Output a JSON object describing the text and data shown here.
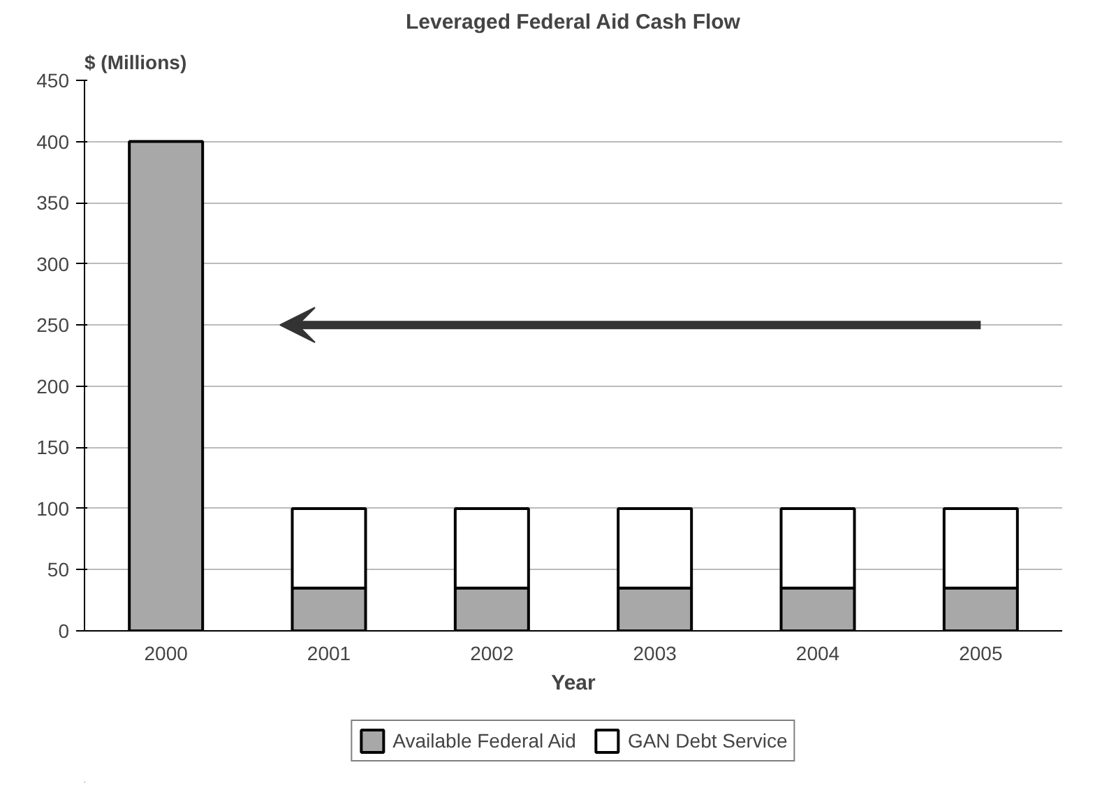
{
  "chart_data": {
    "type": "bar",
    "title": "Leveraged Federal Aid Cash Flow",
    "xlabel": "Year",
    "ylabel": "$ (Millions)",
    "categories": [
      "2000",
      "2001",
      "2002",
      "2003",
      "2004",
      "2005"
    ],
    "stacked": true,
    "series": [
      {
        "name": "Available Federal Aid",
        "color": "#a8a8a8",
        "values": [
          400,
          35,
          35,
          35,
          35,
          35
        ]
      },
      {
        "name": "GAN Debt Service",
        "color": "#ffffff",
        "values": [
          null,
          65,
          65,
          65,
          65,
          65
        ]
      }
    ],
    "ylim": [
      0,
      450
    ],
    "yticks": [
      0,
      50,
      100,
      150,
      200,
      250,
      300,
      350,
      400,
      450
    ],
    "grid": "y",
    "legend": "bottom"
  }
}
